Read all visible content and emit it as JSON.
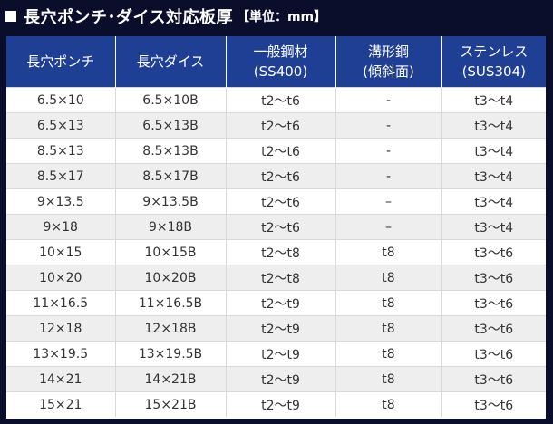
{
  "title": {
    "main": "長穴ポンチ･ダイス対応板厚",
    "unit": "【単位：mm】"
  },
  "table": {
    "headers": [
      {
        "line1": "長穴ポンチ",
        "line2": ""
      },
      {
        "line1": "長穴ダイス",
        "line2": ""
      },
      {
        "line1": "一般鋼材",
        "line2": "(SS400)"
      },
      {
        "line1": "溝形鋼",
        "line2": "(傾斜面)"
      },
      {
        "line1": "ステンレス",
        "line2": "(SUS304)"
      }
    ],
    "rows": [
      [
        "6.5×10",
        "6.5×10B",
        "t2～t6",
        "-",
        "t3～t4"
      ],
      [
        "6.5×13",
        "6.5×13B",
        "t2～t6",
        "-",
        "t3～t4"
      ],
      [
        "8.5×13",
        "8.5×13B",
        "t2～t6",
        "-",
        "t3～t4"
      ],
      [
        "8.5×17",
        "8.5×17B",
        "t2～t6",
        "-",
        "t3～t4"
      ],
      [
        "9×13.5",
        "9×13.5B",
        "t2～t6",
        "–",
        "t3～t4"
      ],
      [
        "9×18",
        "9×18B",
        "t2～t6",
        "–",
        "t3～t4"
      ],
      [
        "10×15",
        "10×15B",
        "t2～t8",
        "t8",
        "t3～t6"
      ],
      [
        "10×20",
        "10×20B",
        "t2～t8",
        "t8",
        "t3～t6"
      ],
      [
        "11×16.5",
        "11×16.5B",
        "t2～t9",
        "t8",
        "t3～t6"
      ],
      [
        "12×18",
        "12×18B",
        "t2～t9",
        "t8",
        "t3～t6"
      ],
      [
        "13×19.5",
        "13×19.5B",
        "t2～t9",
        "t8",
        "t3～t6"
      ],
      [
        "14×21",
        "14×21B",
        "t2～t9",
        "t8",
        "t3～t6"
      ],
      [
        "15×21",
        "15×21B",
        "t2～t9",
        "t8",
        "t3～t6"
      ]
    ]
  }
}
